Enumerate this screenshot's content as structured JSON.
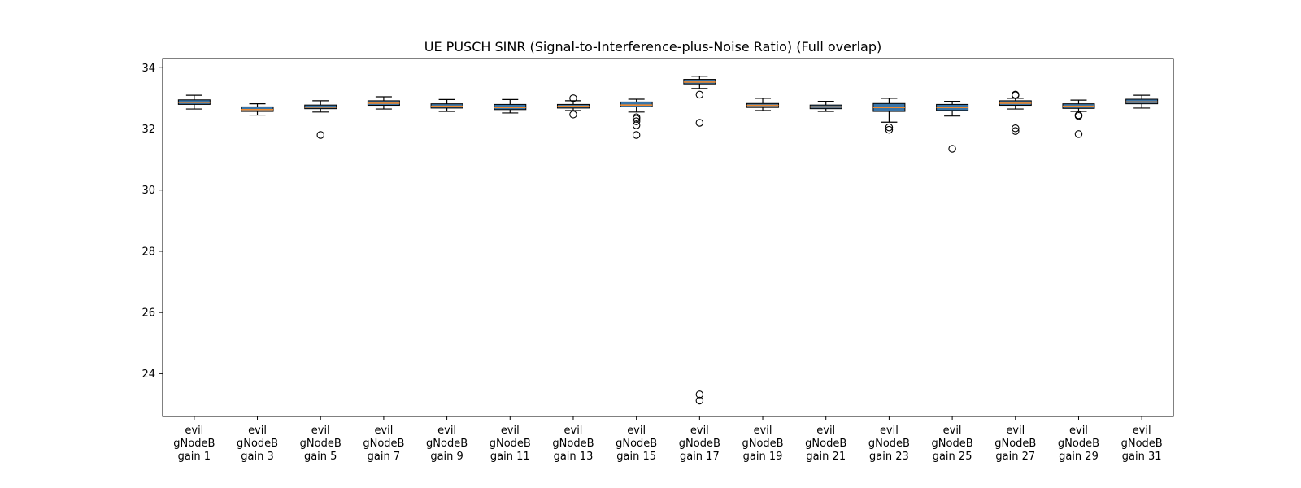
{
  "chart_data": {
    "type": "box",
    "title": "UE PUSCH SINR (Signal-to-Interference-plus-Noise Ratio) (Full overlap)",
    "xlabel": "",
    "ylabel": "",
    "ylim": [
      22.6,
      34.3
    ],
    "yticks": [
      "24",
      "26",
      "28",
      "30",
      "32",
      "34"
    ],
    "grid": false,
    "colors": {
      "box_fill": "#3a75a8",
      "median": "#f08a2e",
      "stroke": "#000000"
    },
    "categories": [
      [
        "evil",
        "gNodeB",
        "gain 1"
      ],
      [
        "evil",
        "gNodeB",
        "gain 3"
      ],
      [
        "evil",
        "gNodeB",
        "gain 5"
      ],
      [
        "evil",
        "gNodeB",
        "gain 7"
      ],
      [
        "evil",
        "gNodeB",
        "gain 9"
      ],
      [
        "evil",
        "gNodeB",
        "gain 11"
      ],
      [
        "evil",
        "gNodeB",
        "gain 13"
      ],
      [
        "evil",
        "gNodeB",
        "gain 15"
      ],
      [
        "evil",
        "gNodeB",
        "gain 17"
      ],
      [
        "evil",
        "gNodeB",
        "gain 19"
      ],
      [
        "evil",
        "gNodeB",
        "gain 21"
      ],
      [
        "evil",
        "gNodeB",
        "gain 23"
      ],
      [
        "evil",
        "gNodeB",
        "gain 25"
      ],
      [
        "evil",
        "gNodeB",
        "gain 27"
      ],
      [
        "evil",
        "gNodeB",
        "gain 29"
      ],
      [
        "evil",
        "gNodeB",
        "gain 31"
      ]
    ],
    "boxes": [
      {
        "whislo": 32.65,
        "q1": 32.8,
        "med": 32.87,
        "q3": 32.95,
        "whishi": 33.1,
        "fliers": []
      },
      {
        "whislo": 32.45,
        "q1": 32.57,
        "med": 32.63,
        "q3": 32.72,
        "whishi": 32.82,
        "fliers": []
      },
      {
        "whislo": 32.55,
        "q1": 32.66,
        "med": 32.71,
        "q3": 32.78,
        "whishi": 32.92,
        "fliers": [
          31.8
        ]
      },
      {
        "whislo": 32.65,
        "q1": 32.77,
        "med": 32.84,
        "q3": 32.92,
        "whishi": 33.05,
        "fliers": []
      },
      {
        "whislo": 32.57,
        "q1": 32.68,
        "med": 32.74,
        "q3": 32.82,
        "whishi": 32.96,
        "fliers": []
      },
      {
        "whislo": 32.52,
        "q1": 32.63,
        "med": 32.7,
        "q3": 32.8,
        "whishi": 32.96,
        "fliers": []
      },
      {
        "whislo": 32.6,
        "q1": 32.68,
        "med": 32.74,
        "q3": 32.8,
        "whishi": 32.92,
        "fliers": [
          32.47,
          33.0
        ]
      },
      {
        "whislo": 32.55,
        "q1": 32.72,
        "med": 32.78,
        "q3": 32.88,
        "whishi": 32.97,
        "fliers": [
          32.38,
          32.33,
          32.25,
          32.12,
          31.8
        ]
      },
      {
        "whislo": 33.32,
        "q1": 33.47,
        "med": 33.53,
        "q3": 33.62,
        "whishi": 33.72,
        "fliers": [
          33.12,
          32.2,
          23.32,
          23.12
        ]
      },
      {
        "whislo": 32.6,
        "q1": 32.7,
        "med": 32.77,
        "q3": 32.83,
        "whishi": 33.0,
        "fliers": []
      },
      {
        "whislo": 32.57,
        "q1": 32.66,
        "med": 32.72,
        "q3": 32.78,
        "whishi": 32.9,
        "fliers": []
      },
      {
        "whislo": 32.22,
        "q1": 32.57,
        "med": 32.7,
        "q3": 32.83,
        "whishi": 33.0,
        "fliers": [
          32.05,
          31.97
        ]
      },
      {
        "whislo": 32.42,
        "q1": 32.6,
        "med": 32.7,
        "q3": 32.8,
        "whishi": 32.9,
        "fliers": [
          31.35
        ]
      },
      {
        "whislo": 32.65,
        "q1": 32.77,
        "med": 32.84,
        "q3": 32.92,
        "whishi": 33.0,
        "fliers": [
          33.1,
          33.12,
          32.02,
          31.93
        ]
      },
      {
        "whislo": 32.57,
        "q1": 32.67,
        "med": 32.74,
        "q3": 32.82,
        "whishi": 32.94,
        "fliers": [
          32.45,
          32.42,
          31.83
        ]
      },
      {
        "whislo": 32.68,
        "q1": 32.82,
        "med": 32.88,
        "q3": 32.97,
        "whishi": 33.1,
        "fliers": []
      }
    ]
  }
}
